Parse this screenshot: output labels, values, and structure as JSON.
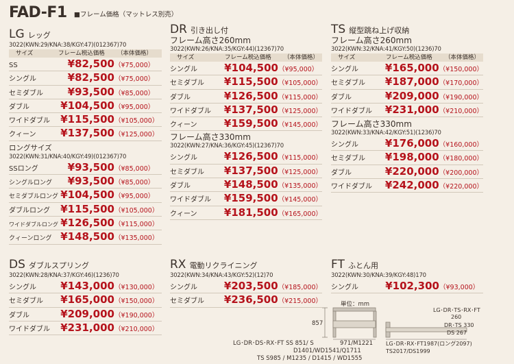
{
  "header": {
    "title": "FAD-F1",
    "subtitle": "■フレーム価格（マットレス別売）"
  },
  "colhead": {
    "size": "サイズ",
    "price": "フレーム税込価格",
    "body": "（本体価格）"
  },
  "lg": {
    "code": "LG",
    "name": "レッグ",
    "kwn": "3022(KWN:29/KNA:38/KGY:47)(012367)70",
    "rows": [
      {
        "size": "SS",
        "price": "¥82,500",
        "body": "（¥75,000）"
      },
      {
        "size": "シングル",
        "price": "¥82,500",
        "body": "（¥75,000）"
      },
      {
        "size": "セミダブル",
        "price": "¥93,500",
        "body": "（¥85,000）"
      },
      {
        "size": "ダブル",
        "price": "¥104,500",
        "body": "（¥95,000）"
      },
      {
        "size": "ワイドダブル",
        "price": "¥115,500",
        "body": "（¥105,000）"
      },
      {
        "size": "クィーン",
        "price": "¥137,500",
        "body": "（¥125,000）"
      }
    ],
    "long_title": "ロングサイズ",
    "long_kwn": "3022(KWN:31/KNA:40/KGY:49)(012367)70",
    "long_rows": [
      {
        "size": "SSロング",
        "price": "¥93,500",
        "body": "（¥85,000）"
      },
      {
        "size": "シングルロング",
        "price": "¥93,500",
        "body": "（¥85,000）"
      },
      {
        "size": "セミダブルロング",
        "price": "¥104,500",
        "body": "（¥95,000）"
      },
      {
        "size": "ダブルロング",
        "price": "¥115,500",
        "body": "（¥105,000）"
      },
      {
        "size": "ワイドダブルロング",
        "price": "¥126,500",
        "body": "（¥115,000）"
      },
      {
        "size": "クィーンロング",
        "price": "¥148,500",
        "body": "（¥135,000）"
      }
    ]
  },
  "dr": {
    "code": "DR",
    "name": "引き出し付",
    "h1": "フレーム高さ260mm",
    "kwn1": "3022(KWN:26/KNA:35/KGY:44)(12367)70",
    "rows1": [
      {
        "size": "シングル",
        "price": "¥104,500",
        "body": "（¥95,000）"
      },
      {
        "size": "セミダブル",
        "price": "¥115,500",
        "body": "（¥105,000）"
      },
      {
        "size": "ダブル",
        "price": "¥126,500",
        "body": "（¥115,000）"
      },
      {
        "size": "ワイドダブル",
        "price": "¥137,500",
        "body": "（¥125,000）"
      },
      {
        "size": "クィーン",
        "price": "¥159,500",
        "body": "（¥145,000）"
      }
    ],
    "h2": "フレーム高さ330mm",
    "kwn2": "3022(KWN:27/KNA:36/KGY:45)(12367)70",
    "rows2": [
      {
        "size": "シングル",
        "price": "¥126,500",
        "body": "（¥115,000）"
      },
      {
        "size": "セミダブル",
        "price": "¥137,500",
        "body": "（¥125,000）"
      },
      {
        "size": "ダブル",
        "price": "¥148,500",
        "body": "（¥135,000）"
      },
      {
        "size": "ワイドダブル",
        "price": "¥159,500",
        "body": "（¥145,000）"
      },
      {
        "size": "クィーン",
        "price": "¥181,500",
        "body": "（¥165,000）"
      }
    ]
  },
  "ts": {
    "code": "TS",
    "name": "縦型跳ね上げ収納",
    "h1": "フレーム高さ260mm",
    "kwn1": "3022(KWN:32/KNA:41/KGY:50)(1236)70",
    "rows1": [
      {
        "size": "シングル",
        "price": "¥165,000",
        "body": "（¥150,000）"
      },
      {
        "size": "セミダブル",
        "price": "¥187,000",
        "body": "（¥170,000）"
      },
      {
        "size": "ダブル",
        "price": "¥209,000",
        "body": "（¥190,000）"
      },
      {
        "size": "ワイドダブル",
        "price": "¥231,000",
        "body": "（¥210,000）"
      }
    ],
    "h2": "フレーム高さ330mm",
    "kwn2": "3022(KWN:33/KNA:42/KGY:51)(1236)70",
    "rows2": [
      {
        "size": "シングル",
        "price": "¥176,000",
        "body": "（¥160,000）"
      },
      {
        "size": "セミダブル",
        "price": "¥198,000",
        "body": "（¥180,000）"
      },
      {
        "size": "ダブル",
        "price": "¥220,000",
        "body": "（¥200,000）"
      },
      {
        "size": "ワイドダブル",
        "price": "¥242,000",
        "body": "（¥220,000）"
      }
    ]
  },
  "ds": {
    "code": "DS",
    "name": "ダブルスプリング",
    "kwn": "3022(KWN:28/KNA:37/KGY:46)(1236)70",
    "rows": [
      {
        "size": "シングル",
        "price": "¥143,000",
        "body": "（¥130,000）"
      },
      {
        "size": "セミダブル",
        "price": "¥165,000",
        "body": "（¥150,000）"
      },
      {
        "size": "ダブル",
        "price": "¥209,000",
        "body": "（¥190,000）"
      },
      {
        "size": "ワイドダブル",
        "price": "¥231,000",
        "body": "（¥210,000）"
      }
    ]
  },
  "rx": {
    "code": "RX",
    "name": "電動リクライニング",
    "kwn": "3022(KWN:34/KNA:43/KGY:52)(12)70",
    "rows": [
      {
        "size": "シングル",
        "price": "¥203,500",
        "body": "（¥185,000）"
      },
      {
        "size": "セミダブル",
        "price": "¥236,500",
        "body": "（¥215,000）"
      }
    ]
  },
  "ft": {
    "code": "FT",
    "name": "ふとん用",
    "kwn": "3022(KWN:30/KNA:39/KGY:48)170",
    "rows": [
      {
        "size": "シングル",
        "price": "¥102,300",
        "body": "（¥93,000）"
      }
    ]
  },
  "diagram": {
    "unit": "単位：mm",
    "height": "857",
    "left_label1": "LG･DR･DS･RX･FT SS 851/ S",
    "left_label2": "971/M1221",
    "left_label3": "D1401/WD1541/Q1711",
    "left_label4": "TS S985 / M1235 / D1415 / WD1555",
    "right_label1": "LG･DR･TS･RX･FT",
    "right_label2": "260",
    "right_label3": "DR･TS 330",
    "right_label4": "DS 267",
    "right_label5": "LG･DR･RX･FT1987(ロング2097)",
    "right_label6": "TS2017/DS1999"
  }
}
